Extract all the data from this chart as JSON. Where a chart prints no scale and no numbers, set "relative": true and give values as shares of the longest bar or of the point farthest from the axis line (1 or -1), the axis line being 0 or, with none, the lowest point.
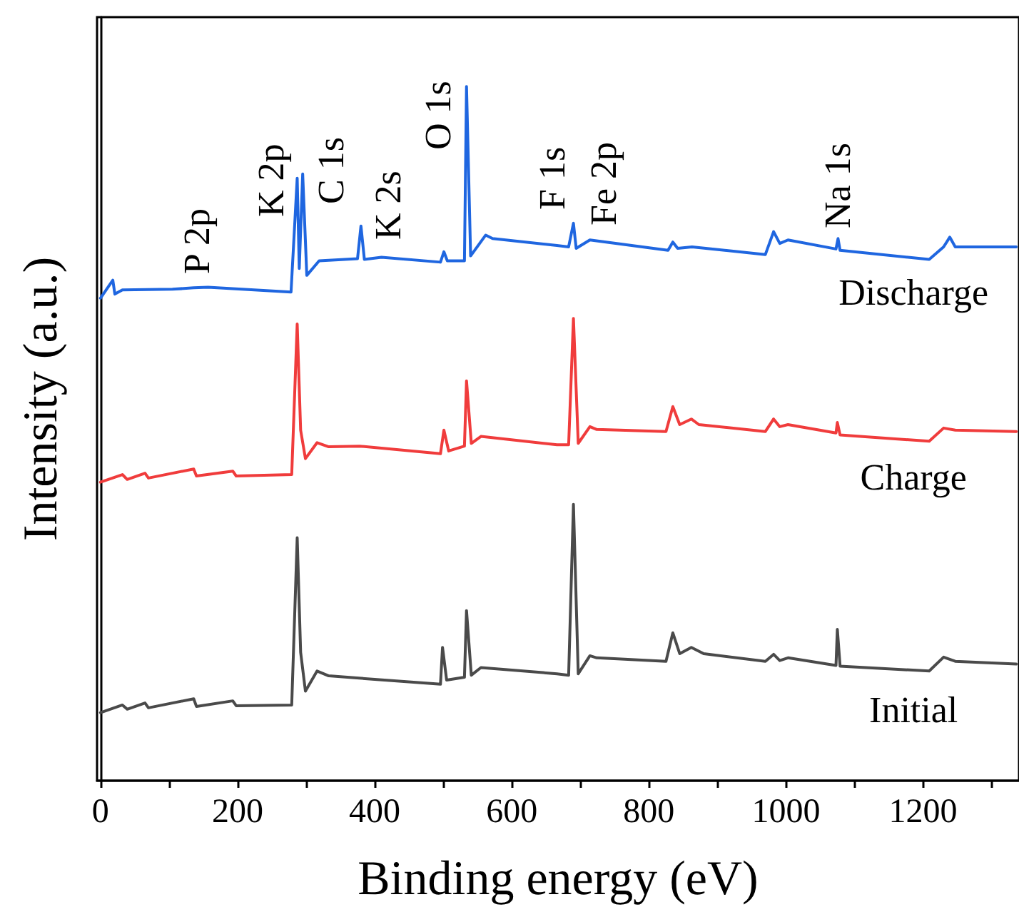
{
  "chart_data": {
    "type": "line",
    "xlabel": "Binding energy (eV)",
    "ylabel": "Intensity (a.u.)",
    "relative": true,
    "legend": false,
    "grid": false,
    "marker": "none",
    "xlim": [
      -5,
      1340
    ],
    "xticks": [
      0,
      {
        "value": 100,
        "label": null
      },
      200,
      {
        "value": 300,
        "label": null
      },
      400,
      {
        "value": 500,
        "label": null
      },
      600,
      {
        "value": 700,
        "label": null
      },
      800,
      {
        "value": 900,
        "label": null
      },
      1000,
      {
        "value": 1100,
        "label": null
      },
      1200,
      {
        "value": 1300,
        "label": null
      }
    ],
    "annotations": [
      "P 2p",
      "K 2p",
      "C 1s",
      "K 2s",
      "O 1s",
      "F 1s",
      "Fe 2p",
      "Na 1s"
    ],
    "series": [
      {
        "name": "Discharge",
        "color": "#1f66e0",
        "x": [
          0,
          18,
          21,
          32,
          105,
          136,
          157,
          278,
          287,
          290,
          295,
          301,
          319,
          375,
          380,
          385,
          410,
          496,
          501,
          506,
          531,
          534,
          540,
          562,
          572,
          666,
          683,
          690,
          694,
          714,
          828,
          835,
          842,
          863,
          970,
          982,
          991,
          1003,
          1073,
          1076,
          1079,
          1209,
          1230,
          1239,
          1247,
          1336
        ],
        "values": [
          0.695,
          0.721,
          0.701,
          0.707,
          0.708,
          0.71,
          0.711,
          0.704,
          0.868,
          0.738,
          0.874,
          0.728,
          0.749,
          0.752,
          0.799,
          0.751,
          0.754,
          0.747,
          0.762,
          0.749,
          0.749,
          1,
          0.756,
          0.786,
          0.781,
          0.771,
          0.769,
          0.803,
          0.767,
          0.779,
          0.764,
          0.776,
          0.767,
          0.769,
          0.758,
          0.791,
          0.774,
          0.779,
          0.766,
          0.781,
          0.764,
          0.751,
          0.769,
          0.783,
          0.769,
          0.769
        ]
      },
      {
        "name": "Charge",
        "color": "#f03c3c",
        "x": [
          0,
          32,
          39,
          65,
          70,
          136,
          140,
          193,
          198,
          279,
          287,
          292,
          299,
          316,
          333,
          378,
          496,
          501,
          508,
          531,
          534,
          541,
          555,
          666,
          683,
          690,
          697,
          714,
          724,
          825,
          835,
          845,
          862,
          873,
          970,
          982,
          991,
          1003,
          1073,
          1075,
          1079,
          1209,
          1230,
          1247,
          1336
        ],
        "values": [
          0.43,
          0.441,
          0.434,
          0.443,
          0.436,
          0.449,
          0.439,
          0.446,
          0.439,
          0.441,
          0.658,
          0.505,
          0.464,
          0.487,
          0.481,
          0.482,
          0.471,
          0.505,
          0.475,
          0.482,
          0.576,
          0.486,
          0.496,
          0.484,
          0.484,
          0.666,
          0.486,
          0.51,
          0.506,
          0.503,
          0.539,
          0.513,
          0.521,
          0.513,
          0.503,
          0.521,
          0.51,
          0.513,
          0.501,
          0.516,
          0.498,
          0.489,
          0.508,
          0.505,
          0.503
        ]
      },
      {
        "name": "Initial",
        "color": "#4a4a4a",
        "x": [
          0,
          32,
          39,
          65,
          70,
          136,
          140,
          193,
          198,
          279,
          287,
          292,
          299,
          316,
          333,
          496,
          499,
          505,
          531,
          534,
          541,
          555,
          666,
          683,
          690,
          697,
          714,
          724,
          825,
          835,
          845,
          862,
          880,
          970,
          982,
          991,
          1003,
          1073,
          1075,
          1079,
          1209,
          1230,
          1247,
          1336
        ],
        "values": [
          0.098,
          0.109,
          0.103,
          0.112,
          0.105,
          0.118,
          0.107,
          0.115,
          0.108,
          0.109,
          0.35,
          0.185,
          0.129,
          0.158,
          0.151,
          0.139,
          0.192,
          0.145,
          0.149,
          0.245,
          0.152,
          0.163,
          0.154,
          0.152,
          0.398,
          0.154,
          0.18,
          0.177,
          0.172,
          0.213,
          0.183,
          0.192,
          0.183,
          0.172,
          0.182,
          0.173,
          0.177,
          0.166,
          0.218,
          0.165,
          0.158,
          0.178,
          0.172,
          0.168
        ]
      }
    ]
  }
}
